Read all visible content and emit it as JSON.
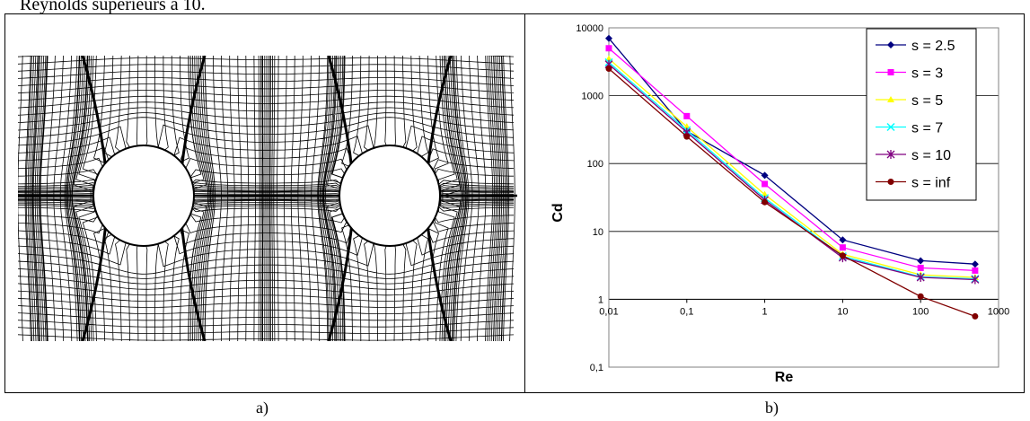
{
  "header_text": "Reynolds supérieurs à 10.",
  "captions": {
    "a": "a)",
    "b": "b)"
  },
  "chart_data": {
    "type": "line",
    "xlabel": "Re",
    "ylabel": "Cd",
    "x_scale": "log",
    "y_scale": "log",
    "xlim": [
      0.01,
      1000
    ],
    "ylim": [
      0.1,
      10000
    ],
    "x_ticks": [
      "0,01",
      "0,1",
      "1",
      "10",
      "100",
      "1000"
    ],
    "y_ticks": [
      "0,1",
      "1",
      "10",
      "100",
      "1000",
      "10000"
    ],
    "grid": "horizontal",
    "legend_position": "top-right",
    "x": [
      0.01,
      0.1,
      1,
      10,
      100,
      500
    ],
    "series": [
      {
        "name": "s = 2.5",
        "color": "#000080",
        "marker": "diamond",
        "values": [
          7000,
          300,
          67,
          7.5,
          3.7,
          3.3
        ]
      },
      {
        "name": "s = 3",
        "color": "#ff00ff",
        "marker": "square",
        "values": [
          5000,
          500,
          50,
          5.8,
          2.9,
          2.65
        ]
      },
      {
        "name": "s = 5",
        "color": "#ffff00",
        "marker": "triangle",
        "values": [
          3500,
          350,
          35,
          4.6,
          2.3,
          2.1
        ]
      },
      {
        "name": "s = 7",
        "color": "#00ffff",
        "marker": "x",
        "values": [
          3100,
          310,
          31,
          4.3,
          2.15,
          2.0
        ]
      },
      {
        "name": "s = 10",
        "color": "#800080",
        "marker": "star",
        "values": [
          2900,
          290,
          29,
          4.1,
          2.1,
          1.95
        ]
      },
      {
        "name": "s = inf",
        "color": "#800000",
        "marker": "circle",
        "values": [
          2500,
          250,
          27,
          4.4,
          1.1,
          0.56
        ]
      }
    ]
  }
}
